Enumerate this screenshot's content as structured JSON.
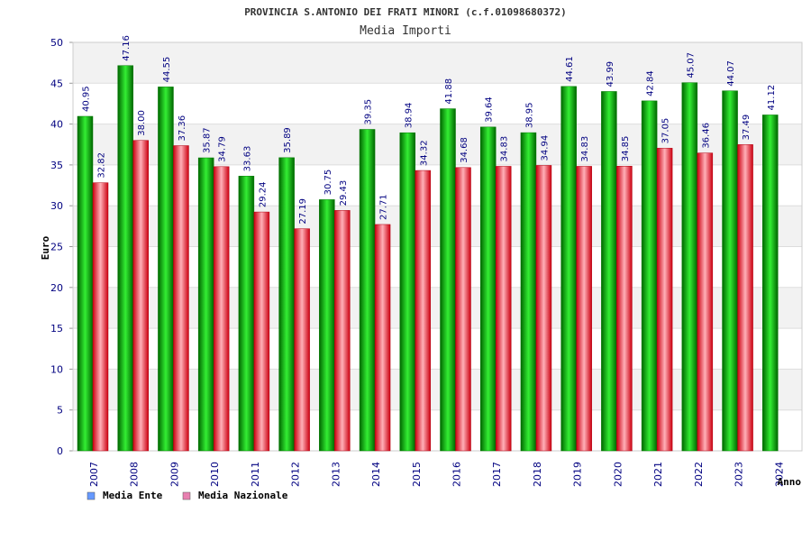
{
  "chart_data": {
    "type": "bar",
    "title": "PROVINCIA S.ANTONIO DEI FRATI MINORI (c.f.01098680372)",
    "subtitle": "Media Importi",
    "ylabel": "Euro",
    "xlabel": "Anno",
    "ylim": [
      0,
      50
    ],
    "yticks": [
      0,
      5,
      10,
      15,
      20,
      25,
      30,
      35,
      40,
      45,
      50
    ],
    "grid": true,
    "legend_position": "bottom-left",
    "categories": [
      "2007",
      "2008",
      "2009",
      "2010",
      "2011",
      "2012",
      "2013",
      "2014",
      "2015",
      "2016",
      "2017",
      "2018",
      "2019",
      "2020",
      "2021",
      "2022",
      "2023",
      "2024"
    ],
    "series": [
      {
        "name": "Media Ente",
        "legend_color": "#6699ff",
        "bar_color": "#00c800",
        "values": [
          40.95,
          47.16,
          44.55,
          35.87,
          33.63,
          35.89,
          30.75,
          39.35,
          38.94,
          41.88,
          39.64,
          38.95,
          44.61,
          43.99,
          42.84,
          45.07,
          44.07,
          41.12
        ],
        "labels": [
          "40.95",
          "47.16",
          "44.55",
          "35.87",
          "33.63",
          "35.89",
          "30.75",
          "39.35",
          "38.94",
          "41.88",
          "39.64",
          "38.95",
          "44.61",
          "43.99",
          "42.84",
          "45.07",
          "44.07",
          "41.12"
        ]
      },
      {
        "name": "Media Nazionale",
        "legend_color": "#e880b0",
        "bar_color": "#e81c30",
        "values": [
          32.82,
          38.0,
          37.36,
          34.79,
          29.24,
          27.19,
          29.43,
          27.71,
          34.32,
          34.68,
          34.83,
          34.94,
          34.83,
          34.85,
          37.05,
          36.46,
          37.49,
          null
        ],
        "labels": [
          "32.82",
          "38.00",
          "37.36",
          "34.79",
          "29.24",
          "27.19",
          "29.43",
          "27.71",
          "34.32",
          "34.68",
          "34.83",
          "34.94",
          "34.83",
          "34.85",
          "37.05",
          "36.46",
          "37.49",
          null
        ]
      }
    ]
  }
}
